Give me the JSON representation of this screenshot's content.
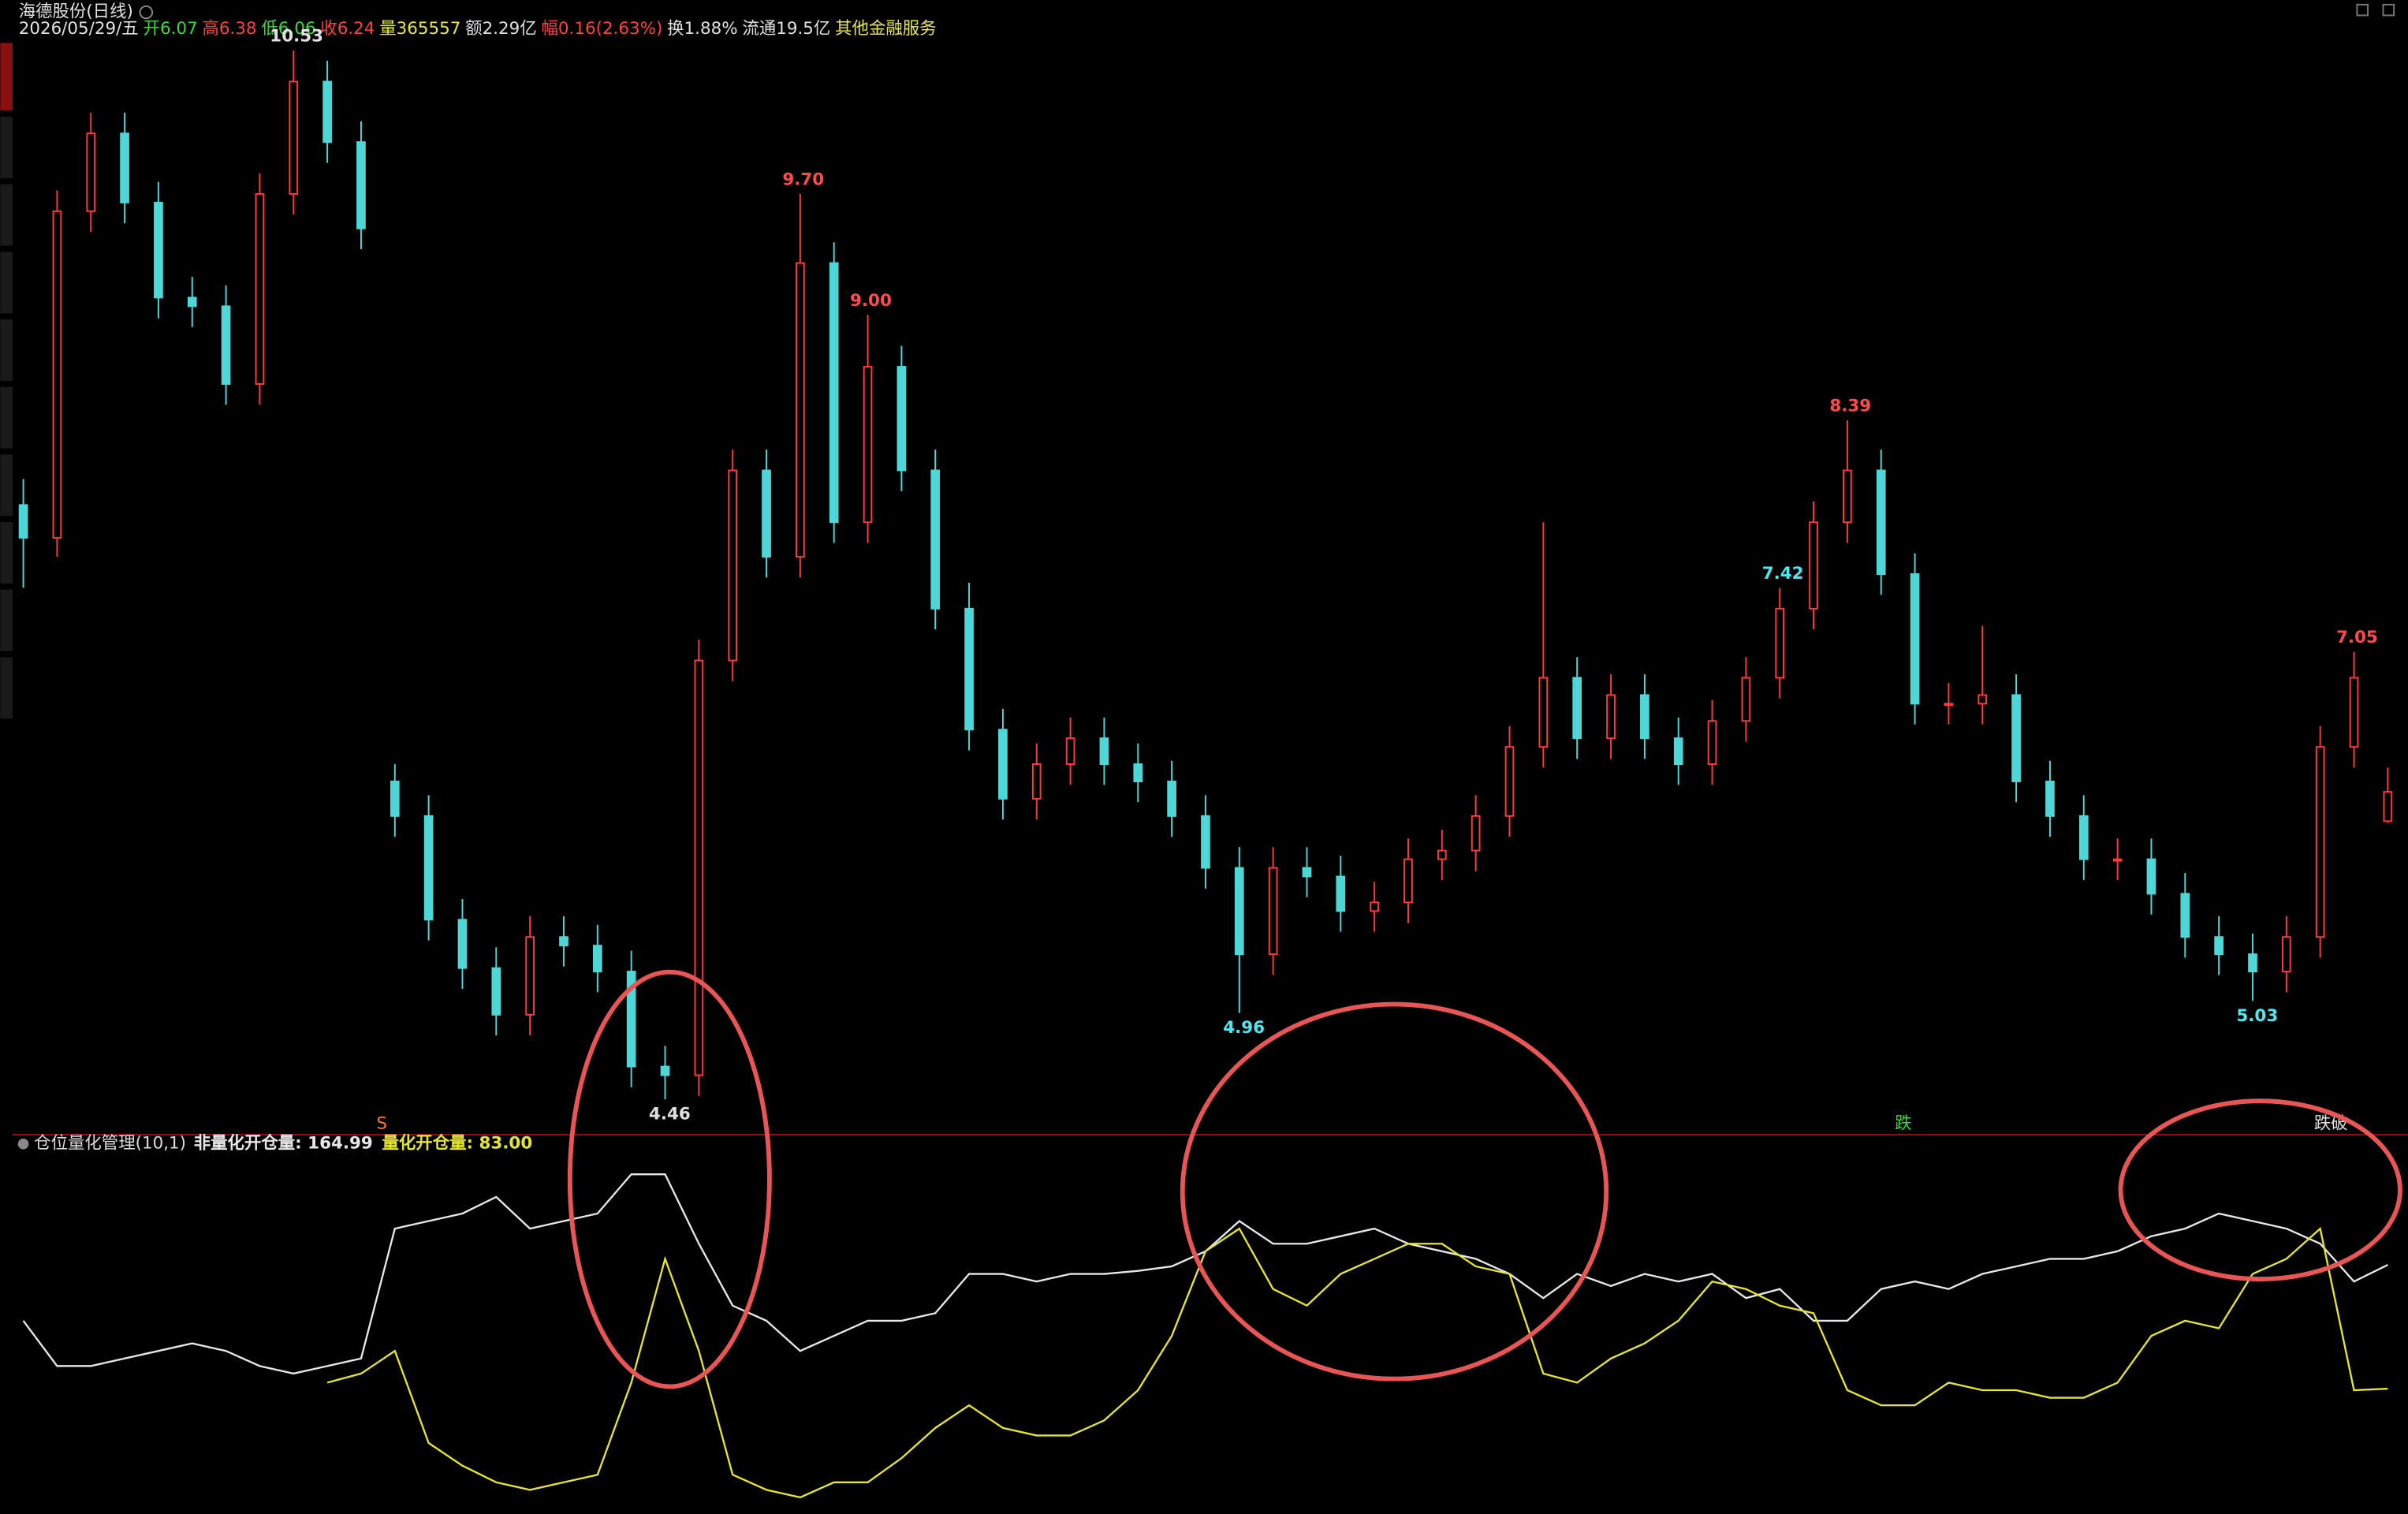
{
  "header": {
    "title": "海德股份(日线)",
    "items": [
      {
        "text": "2026/05/29/五",
        "color": "#e0e0e0"
      },
      {
        "text": "开6.07",
        "color": "#33dd33"
      },
      {
        "text": "高6.38",
        "color": "#ff4040"
      },
      {
        "text": "低6.06",
        "color": "#33dd33"
      },
      {
        "text": "收6.24",
        "color": "#ff4040"
      },
      {
        "text": "量365557",
        "color": "#e8e84a"
      },
      {
        "text": "额2.29亿",
        "color": "#e0e0e0"
      },
      {
        "text": "幅0.16(2.63%)",
        "color": "#ff4040"
      },
      {
        "text": "换1.88%",
        "color": "#e0e0e0"
      },
      {
        "text": "流通19.5亿",
        "color": "#e0e0e0"
      },
      {
        "text": "其他金融服务",
        "color": "#e8e84a"
      }
    ]
  },
  "signals": [
    "S",
    "跌",
    "跌破"
  ],
  "chart_data": [
    {
      "type": "candlestick",
      "up_color": "#ff3a3a",
      "down_color": "#4fd6d6",
      "ylim": [
        4.3,
        10.6
      ],
      "candles": [
        [
          7.9,
          8.05,
          7.42,
          7.71
        ],
        [
          7.71,
          9.72,
          7.6,
          9.6
        ],
        [
          9.6,
          10.17,
          9.48,
          10.05
        ],
        [
          10.05,
          10.17,
          9.53,
          9.65
        ],
        [
          9.65,
          9.77,
          8.98,
          9.1
        ],
        [
          9.1,
          9.22,
          8.93,
          9.05
        ],
        [
          9.05,
          9.17,
          8.48,
          8.6
        ],
        [
          8.6,
          9.82,
          8.48,
          9.7
        ],
        [
          9.7,
          10.53,
          9.58,
          10.35
        ],
        [
          10.35,
          10.47,
          9.88,
          10.0
        ],
        [
          10.0,
          10.12,
          9.38,
          9.5
        ],
        [
          6.3,
          6.4,
          5.98,
          6.1
        ],
        [
          6.1,
          6.22,
          5.38,
          5.5
        ],
        [
          5.5,
          5.62,
          5.1,
          5.22
        ],
        [
          5.22,
          5.34,
          4.83,
          4.95
        ],
        [
          4.95,
          5.52,
          4.83,
          5.4
        ],
        [
          5.4,
          5.52,
          5.23,
          5.35
        ],
        [
          5.35,
          5.47,
          5.08,
          5.2
        ],
        [
          5.2,
          5.32,
          4.53,
          4.65
        ],
        [
          4.65,
          4.77,
          4.46,
          4.6
        ],
        [
          4.6,
          7.12,
          4.48,
          7.0
        ],
        [
          7.0,
          8.22,
          6.88,
          8.1
        ],
        [
          8.1,
          8.22,
          7.48,
          7.6
        ],
        [
          7.6,
          9.7,
          7.48,
          9.3
        ],
        [
          9.3,
          9.42,
          7.68,
          7.8
        ],
        [
          7.8,
          9.0,
          7.68,
          8.7
        ],
        [
          8.7,
          8.82,
          7.98,
          8.1
        ],
        [
          8.1,
          8.22,
          7.18,
          7.3
        ],
        [
          7.3,
          7.45,
          6.48,
          6.6
        ],
        [
          6.6,
          6.72,
          6.08,
          6.2
        ],
        [
          6.2,
          6.52,
          6.08,
          6.4
        ],
        [
          6.4,
          6.67,
          6.28,
          6.55
        ],
        [
          6.55,
          6.67,
          6.28,
          6.4
        ],
        [
          6.4,
          6.52,
          6.18,
          6.3
        ],
        [
          6.3,
          6.42,
          5.98,
          6.1
        ],
        [
          6.1,
          6.22,
          5.68,
          5.8
        ],
        [
          5.8,
          5.92,
          4.96,
          5.3
        ],
        [
          5.3,
          5.92,
          5.18,
          5.8
        ],
        [
          5.8,
          5.92,
          5.63,
          5.75
        ],
        [
          5.75,
          5.87,
          5.43,
          5.55
        ],
        [
          5.55,
          5.72,
          5.43,
          5.6
        ],
        [
          5.6,
          5.97,
          5.48,
          5.85
        ],
        [
          5.85,
          6.02,
          5.73,
          5.9
        ],
        [
          5.9,
          6.22,
          5.78,
          6.1
        ],
        [
          6.1,
          6.62,
          5.98,
          6.5
        ],
        [
          6.5,
          7.8,
          6.38,
          6.9
        ],
        [
          6.9,
          7.02,
          6.43,
          6.55
        ],
        [
          6.55,
          6.92,
          6.43,
          6.8
        ],
        [
          6.8,
          6.92,
          6.43,
          6.55
        ],
        [
          6.55,
          6.67,
          6.28,
          6.4
        ],
        [
          6.4,
          6.77,
          6.28,
          6.65
        ],
        [
          6.65,
          7.02,
          6.53,
          6.9
        ],
        [
          6.9,
          7.42,
          6.78,
          7.3
        ],
        [
          7.3,
          7.92,
          7.18,
          7.8
        ],
        [
          7.8,
          8.39,
          7.68,
          8.1
        ],
        [
          8.1,
          8.22,
          7.38,
          7.5
        ],
        [
          7.5,
          7.62,
          6.63,
          6.75
        ],
        [
          6.75,
          6.87,
          6.63,
          6.75
        ],
        [
          6.75,
          7.2,
          6.63,
          6.8
        ],
        [
          6.8,
          6.92,
          6.18,
          6.3
        ],
        [
          6.3,
          6.42,
          5.98,
          6.1
        ],
        [
          6.1,
          6.22,
          5.73,
          5.85
        ],
        [
          5.85,
          5.97,
          5.73,
          5.85
        ],
        [
          5.85,
          5.97,
          5.53,
          5.65
        ],
        [
          5.65,
          5.77,
          5.28,
          5.4
        ],
        [
          5.4,
          5.52,
          5.18,
          5.3
        ],
        [
          5.3,
          5.42,
          5.03,
          5.2
        ],
        [
          5.2,
          5.52,
          5.08,
          5.4
        ],
        [
          5.4,
          6.62,
          5.28,
          6.5
        ],
        [
          6.5,
          7.05,
          6.38,
          6.9
        ],
        [
          6.07,
          6.38,
          6.06,
          6.24
        ]
      ],
      "annotations": [
        {
          "value": 10.53,
          "label": "10.53",
          "color": "#e0e0e0"
        },
        {
          "value": 9.7,
          "label": "9.70",
          "color": "#ff4b4b"
        },
        {
          "value": 9.0,
          "label": "9.00",
          "color": "#ff4b4b"
        },
        {
          "value": 8.39,
          "label": "8.39",
          "color": "#ff4b4b"
        },
        {
          "value": 7.05,
          "label": "7.05",
          "color": "#ff4b4b"
        },
        {
          "value": 7.42,
          "label": "7.42",
          "color": "#4fe8f0"
        },
        {
          "value": 4.46,
          "label": "4.46",
          "color": "#e0e0e0"
        },
        {
          "value": 4.96,
          "label": "4.96",
          "color": "#4fe8f0"
        },
        {
          "value": 5.03,
          "label": "5.03",
          "color": "#4fe8f0"
        }
      ]
    },
    {
      "type": "line",
      "title": "仓位量化管理(10,1)",
      "ylim": [
        0,
        240
      ],
      "series": [
        {
          "name": "非量化开仓量: 164.99",
          "color": "#e8e8e8",
          "values": [
            128,
            98,
            98,
            103,
            108,
            113,
            108,
            98,
            93,
            98,
            103,
            189,
            194,
            199,
            210,
            189,
            194,
            199,
            225,
            225,
            179,
            138,
            128,
            108,
            118,
            128,
            128,
            133,
            159,
            159,
            154,
            159,
            159,
            161,
            164,
            174,
            194,
            179,
            179,
            184,
            189,
            179,
            174,
            169,
            159,
            143,
            159,
            151,
            159,
            154,
            159,
            143,
            149,
            128,
            128,
            149,
            154,
            149,
            159,
            164,
            169,
            169,
            174,
            184,
            189,
            199,
            194,
            189,
            179,
            154,
            164.99
          ]
        },
        {
          "name": "量化开仓量: 83.00",
          "color": "#e6e62e",
          "values": [
            null,
            null,
            null,
            null,
            null,
            null,
            null,
            null,
            null,
            87,
            93,
            108,
            47,
            32,
            21,
            16,
            21,
            26,
            87,
            169,
            108,
            26,
            16,
            11,
            21,
            21,
            37,
            57,
            72,
            57,
            52,
            52,
            62,
            82,
            118,
            174,
            189,
            149,
            138,
            159,
            169,
            179,
            179,
            164,
            159,
            93,
            87,
            103,
            113,
            128,
            154,
            149,
            138,
            133,
            82,
            72,
            72,
            87,
            82,
            82,
            77,
            77,
            87,
            118,
            128,
            123,
            159,
            169,
            189,
            82,
            83
          ]
        }
      ]
    }
  ]
}
